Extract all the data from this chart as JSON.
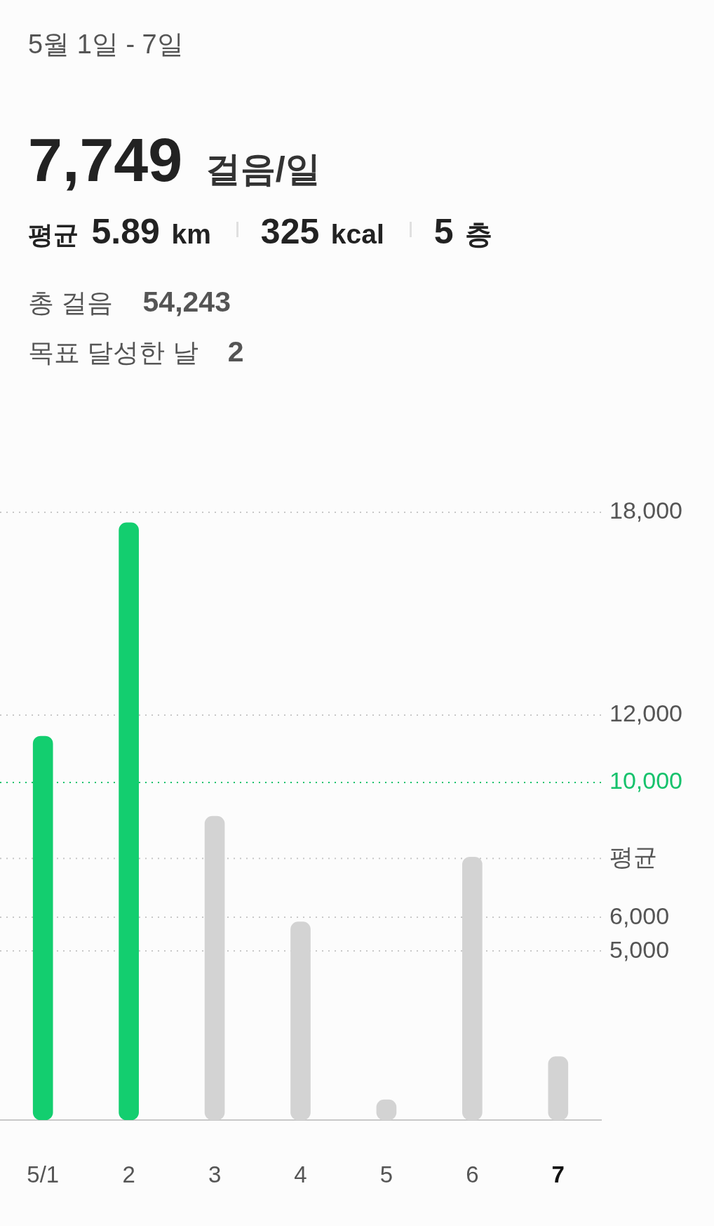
{
  "chart_data": {
    "type": "bar",
    "title": "5월 1일 - 7일",
    "subtitle": "7,749 걸음/일",
    "annotations": [
      "평균 5.89 km",
      "325 kcal",
      "5 층",
      "총 걸음 54,243",
      "목표 달성한 날 2"
    ],
    "categories": [
      "5/1",
      "2",
      "3",
      "4",
      "5",
      "6",
      "7"
    ],
    "values": [
      11370,
      17690,
      9000,
      5870,
      600,
      7790,
      1880
    ],
    "colors": [
      "#13ce6f",
      "#13ce6f",
      "#d3d3d3",
      "#d3d3d3",
      "#d3d3d3",
      "#d3d3d3",
      "#d3d3d3"
    ],
    "ylim": [
      0,
      18000
    ],
    "yticks": [
      {
        "value": 5000,
        "label": "5,000"
      },
      {
        "value": 6000,
        "label": "6,000"
      },
      {
        "value": 12000,
        "label": "12,000"
      },
      {
        "value": 18000,
        "label": "18,000"
      }
    ],
    "grid": "y",
    "ref_lines": [
      {
        "axis": "y",
        "value": 10000,
        "label": "10,000",
        "color": "#16c26c",
        "line_style": "dotted"
      },
      {
        "axis": "y",
        "value": 7749,
        "label": "평균",
        "line_style": "dotted"
      }
    ]
  }
}
